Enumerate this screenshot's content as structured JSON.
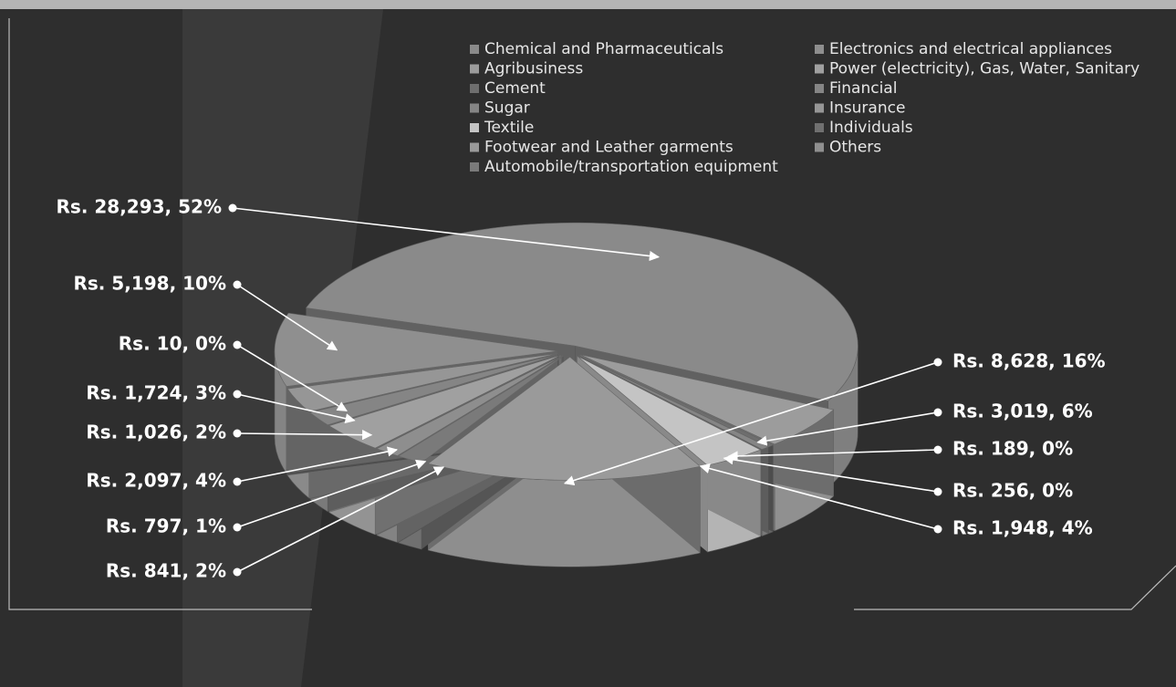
{
  "chart_data": {
    "type": "pie",
    "categories": [
      "Chemical and Pharmaceuticals",
      "Agribusiness",
      "Cement",
      "Sugar",
      "Textile",
      "Footwear and Leather garments",
      "Automobile/transportation equipment",
      "Electronics and electrical appliances",
      "Power (electricity), Gas, Water, Sanitary",
      "Financial",
      "Insurance",
      "Individuals",
      "Others"
    ],
    "values": [
      28293,
      3019,
      189,
      256,
      1948,
      8628,
      841,
      797,
      2097,
      1026,
      1724,
      10,
      5198
    ],
    "value_labels": [
      "Rs. 28,293, 52%",
      "Rs. 3,019, 6%",
      "Rs. 189, 0%",
      "Rs. 256, 0%",
      "Rs. 1,948, 4%",
      "Rs. 8,628, 16%",
      "Rs. 841, 2%",
      "Rs. 797, 1%",
      "Rs. 2,097, 4%",
      "Rs. 1,026, 2%",
      "Rs. 1,724, 3%",
      "Rs. 10, 0%",
      "Rs. 5,198, 10%"
    ],
    "colors": [
      "#8a8a8a",
      "#9c9c9c",
      "#6e6e6e",
      "#858585",
      "#c4c4c4",
      "#9a9a9a",
      "#7a7a7a",
      "#8e8e8e",
      "#a0a0a0",
      "#858585",
      "#969696",
      "#707070",
      "#8f8f8f"
    ],
    "legend": "top-right"
  }
}
